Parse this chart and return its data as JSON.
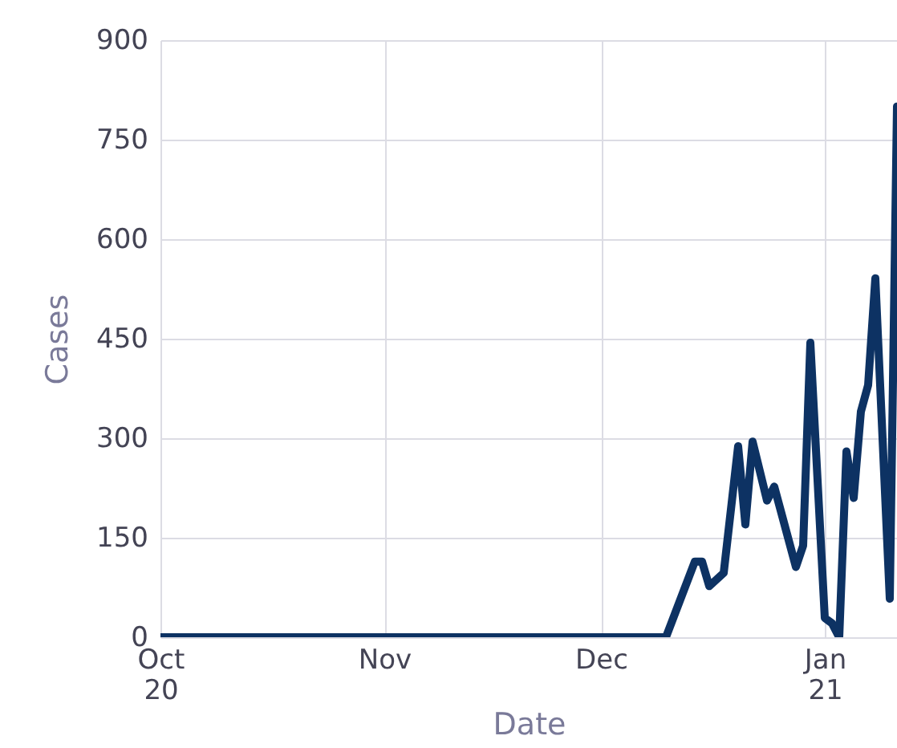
{
  "chart_data": {
    "type": "line",
    "xlabel": "Date",
    "ylabel": "Cases",
    "x": [
      "2020-10-01",
      "2020-12-10",
      "2020-12-14",
      "2020-12-15",
      "2020-12-16",
      "2020-12-18",
      "2020-12-20",
      "2020-12-21",
      "2020-12-22",
      "2020-12-24",
      "2020-12-25",
      "2020-12-28",
      "2020-12-29",
      "2020-12-30",
      "2021-01-01",
      "2021-01-02",
      "2021-01-03",
      "2021-01-04",
      "2021-01-05",
      "2021-01-06",
      "2021-01-07",
      "2021-01-08",
      "2021-01-10",
      "2021-01-11"
    ],
    "series": [
      {
        "color": "#0d3263",
        "values": [
          0,
          0,
          114,
          114,
          77,
          97,
          288,
          170,
          295,
          206,
          227,
          106,
          138,
          444,
          29,
          21,
          0,
          280,
          210,
          340,
          380,
          541,
          58,
          800
        ]
      }
    ],
    "xlim": [
      "2020-10-01",
      "2021-01-11"
    ],
    "xticks": [
      {
        "value": "2020-10-01",
        "label": "Oct\n20"
      },
      {
        "value": "2020-11-01",
        "label": "Nov"
      },
      {
        "value": "2020-12-01",
        "label": "Dec"
      },
      {
        "value": "2021-01-01",
        "label": "Jan\n21"
      }
    ],
    "ylim": [
      0,
      900
    ],
    "yticks": [
      0,
      150,
      300,
      450,
      600,
      750,
      900
    ],
    "grid": true,
    "line_style": "solid",
    "marker": "none"
  }
}
